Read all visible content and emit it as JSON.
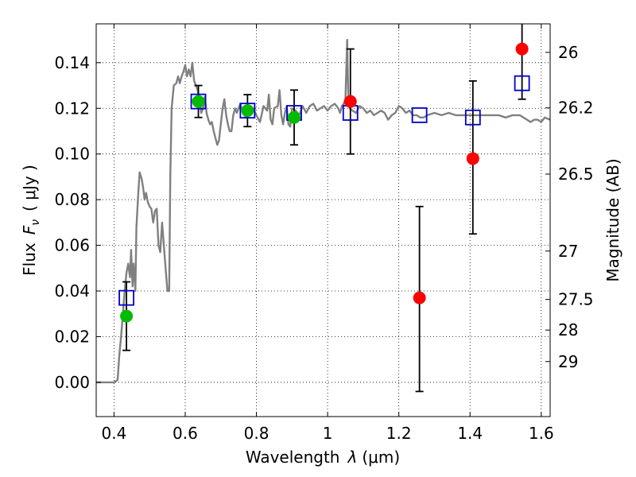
{
  "chart_data": {
    "type": "scatter",
    "xlabel": "Wavelength",
    "xlabel_symbol": "λ",
    "xlabel_unit": "(μm)",
    "ylabel": "Flux",
    "ylabel_symbol": "F",
    "ylabel_subscript": "ν",
    "ylabel_unit": "( μJy )",
    "y2label": "Magnitude (AB)",
    "xlim": [
      0.35,
      1.625
    ],
    "ylim": [
      -0.015,
      0.157
    ],
    "grid": true,
    "xticks": [
      0.4,
      0.6,
      0.8,
      1.0,
      1.2,
      1.4,
      1.6
    ],
    "xtick_labels": [
      "0.4",
      "0.6",
      "0.8",
      "1",
      "1.2",
      "1.4",
      "1.6"
    ],
    "yticks": [
      0.0,
      0.02,
      0.04,
      0.06,
      0.08,
      0.1,
      0.12,
      0.14
    ],
    "ytick_labels": [
      "0.00",
      "0.02",
      "0.04",
      "0.06",
      "0.08",
      "0.10",
      "0.12",
      "0.14"
    ],
    "y2ticks": [
      {
        "label": "26",
        "flux": 0.1445
      },
      {
        "label": "26.2",
        "flux": 0.1202
      },
      {
        "label": "26.5",
        "flux": 0.0912
      },
      {
        "label": "27",
        "flux": 0.0575
      },
      {
        "label": "27.5",
        "flux": 0.0363
      },
      {
        "label": "28",
        "flux": 0.0229
      },
      {
        "label": "29",
        "flux": 0.0091
      }
    ],
    "colors": {
      "model": "#808080",
      "model_points": "#0000cc",
      "detections": "#00bb00",
      "upper_band": "#ff0000",
      "errorbar": "#000000",
      "grid": "#000000"
    },
    "model_spectrum": [
      [
        0.35,
        0.0
      ],
      [
        0.4,
        0.0
      ],
      [
        0.41,
        0.001
      ],
      [
        0.415,
        0.012
      ],
      [
        0.42,
        0.02
      ],
      [
        0.425,
        0.03
      ],
      [
        0.43,
        0.04
      ],
      [
        0.435,
        0.048
      ],
      [
        0.44,
        0.052
      ],
      [
        0.445,
        0.046
      ],
      [
        0.448,
        0.058
      ],
      [
        0.452,
        0.042
      ],
      [
        0.455,
        0.052
      ],
      [
        0.46,
        0.04
      ],
      [
        0.463,
        0.068
      ],
      [
        0.468,
        0.082
      ],
      [
        0.472,
        0.092
      ],
      [
        0.478,
        0.089
      ],
      [
        0.482,
        0.085
      ],
      [
        0.486,
        0.08
      ],
      [
        0.49,
        0.083
      ],
      [
        0.495,
        0.079
      ],
      [
        0.5,
        0.077
      ],
      [
        0.505,
        0.076
      ],
      [
        0.51,
        0.07
      ],
      [
        0.515,
        0.075
      ],
      [
        0.52,
        0.076
      ],
      [
        0.525,
        0.06
      ],
      [
        0.53,
        0.057
      ],
      [
        0.535,
        0.07
      ],
      [
        0.54,
        0.06
      ],
      [
        0.545,
        0.05
      ],
      [
        0.55,
        0.04
      ],
      [
        0.555,
        0.04
      ],
      [
        0.558,
        0.09
      ],
      [
        0.562,
        0.12
      ],
      [
        0.568,
        0.13
      ],
      [
        0.575,
        0.131
      ],
      [
        0.58,
        0.134
      ],
      [
        0.585,
        0.131
      ],
      [
        0.59,
        0.134
      ],
      [
        0.595,
        0.136
      ],
      [
        0.6,
        0.139
      ],
      [
        0.605,
        0.134
      ],
      [
        0.61,
        0.137
      ],
      [
        0.615,
        0.134
      ],
      [
        0.62,
        0.14
      ],
      [
        0.625,
        0.132
      ],
      [
        0.63,
        0.13
      ],
      [
        0.635,
        0.128
      ],
      [
        0.64,
        0.124
      ],
      [
        0.645,
        0.118
      ],
      [
        0.65,
        0.12
      ],
      [
        0.655,
        0.125
      ],
      [
        0.66,
        0.118
      ],
      [
        0.665,
        0.115
      ],
      [
        0.67,
        0.113
      ],
      [
        0.675,
        0.114
      ],
      [
        0.68,
        0.11
      ],
      [
        0.685,
        0.107
      ],
      [
        0.69,
        0.104
      ],
      [
        0.695,
        0.106
      ],
      [
        0.7,
        0.113
      ],
      [
        0.705,
        0.12
      ],
      [
        0.71,
        0.124
      ],
      [
        0.715,
        0.117
      ],
      [
        0.72,
        0.113
      ],
      [
        0.725,
        0.11
      ],
      [
        0.73,
        0.11
      ],
      [
        0.735,
        0.117
      ],
      [
        0.74,
        0.12
      ],
      [
        0.745,
        0.118
      ],
      [
        0.75,
        0.12
      ],
      [
        0.755,
        0.122
      ],
      [
        0.76,
        0.119
      ],
      [
        0.77,
        0.116
      ],
      [
        0.78,
        0.121
      ],
      [
        0.79,
        0.12
      ],
      [
        0.8,
        0.117
      ],
      [
        0.81,
        0.114
      ],
      [
        0.82,
        0.121
      ],
      [
        0.83,
        0.119
      ],
      [
        0.835,
        0.126
      ],
      [
        0.84,
        0.115
      ],
      [
        0.845,
        0.113
      ],
      [
        0.85,
        0.12
      ],
      [
        0.86,
        0.121
      ],
      [
        0.865,
        0.128
      ],
      [
        0.87,
        0.117
      ],
      [
        0.875,
        0.113
      ],
      [
        0.88,
        0.118
      ],
      [
        0.885,
        0.121
      ],
      [
        0.89,
        0.113
      ],
      [
        0.895,
        0.112
      ],
      [
        0.9,
        0.12
      ],
      [
        0.91,
        0.119
      ],
      [
        0.92,
        0.117
      ],
      [
        0.93,
        0.121
      ],
      [
        0.94,
        0.118
      ],
      [
        0.95,
        0.121
      ],
      [
        0.96,
        0.122
      ],
      [
        0.97,
        0.119
      ],
      [
        0.98,
        0.12
      ],
      [
        0.99,
        0.121
      ],
      [
        1.0,
        0.119
      ],
      [
        1.01,
        0.121
      ],
      [
        1.02,
        0.122
      ],
      [
        1.03,
        0.12
      ],
      [
        1.035,
        0.118
      ],
      [
        1.04,
        0.121
      ],
      [
        1.045,
        0.122
      ],
      [
        1.05,
        0.124
      ],
      [
        1.055,
        0.15
      ],
      [
        1.058,
        0.125
      ],
      [
        1.062,
        0.12
      ],
      [
        1.07,
        0.119
      ],
      [
        1.08,
        0.118
      ],
      [
        1.09,
        0.121
      ],
      [
        1.1,
        0.12
      ],
      [
        1.11,
        0.118
      ],
      [
        1.12,
        0.119
      ],
      [
        1.13,
        0.117
      ],
      [
        1.14,
        0.118
      ],
      [
        1.15,
        0.119
      ],
      [
        1.16,
        0.118
      ],
      [
        1.17,
        0.115
      ],
      [
        1.18,
        0.117
      ],
      [
        1.19,
        0.118
      ],
      [
        1.2,
        0.121
      ],
      [
        1.21,
        0.12
      ],
      [
        1.22,
        0.118
      ],
      [
        1.23,
        0.119
      ],
      [
        1.24,
        0.117
      ],
      [
        1.25,
        0.117
      ],
      [
        1.26,
        0.116
      ],
      [
        1.27,
        0.116
      ],
      [
        1.28,
        0.117
      ],
      [
        1.3,
        0.118
      ],
      [
        1.32,
        0.117
      ],
      [
        1.34,
        0.118
      ],
      [
        1.36,
        0.117
      ],
      [
        1.38,
        0.117
      ],
      [
        1.4,
        0.117
      ],
      [
        1.42,
        0.117
      ],
      [
        1.44,
        0.117
      ],
      [
        1.46,
        0.117
      ],
      [
        1.48,
        0.117
      ],
      [
        1.5,
        0.116
      ],
      [
        1.52,
        0.117
      ],
      [
        1.54,
        0.117
      ],
      [
        1.56,
        0.115
      ],
      [
        1.57,
        0.114
      ],
      [
        1.58,
        0.115
      ],
      [
        1.59,
        0.115
      ],
      [
        1.6,
        0.114
      ],
      [
        1.61,
        0.116
      ],
      [
        1.625,
        0.115
      ]
    ],
    "series": [
      {
        "marker": "square-open",
        "color_key": "model_points",
        "points": [
          {
            "x": 0.435,
            "y": 0.037
          },
          {
            "x": 0.637,
            "y": 0.123
          },
          {
            "x": 0.775,
            "y": 0.119
          },
          {
            "x": 0.906,
            "y": 0.118
          },
          {
            "x": 1.064,
            "y": 0.118
          },
          {
            "x": 1.258,
            "y": 0.117
          },
          {
            "x": 1.408,
            "y": 0.116
          },
          {
            "x": 1.546,
            "y": 0.131
          }
        ]
      },
      {
        "marker": "circle",
        "color_key": "detections",
        "points": [
          {
            "x": 0.435,
            "y": 0.029,
            "ylo": 0.014,
            "yhi": 0.044
          },
          {
            "x": 0.637,
            "y": 0.123,
            "ylo": 0.116,
            "yhi": 0.13
          },
          {
            "x": 0.775,
            "y": 0.119,
            "ylo": 0.112,
            "yhi": 0.126
          },
          {
            "x": 0.906,
            "y": 0.116,
            "ylo": 0.104,
            "yhi": 0.128
          }
        ]
      },
      {
        "marker": "circle",
        "color_key": "upper_band",
        "points": [
          {
            "x": 1.064,
            "y": 0.123,
            "ylo": 0.1,
            "yhi": 0.146
          },
          {
            "x": 1.258,
            "y": 0.037,
            "ylo": -0.004,
            "yhi": 0.077
          },
          {
            "x": 1.408,
            "y": 0.098,
            "ylo": 0.065,
            "yhi": 0.132
          },
          {
            "x": 1.546,
            "y": 0.146,
            "ylo": 0.124,
            "yhi": 0.158
          }
        ]
      }
    ]
  }
}
